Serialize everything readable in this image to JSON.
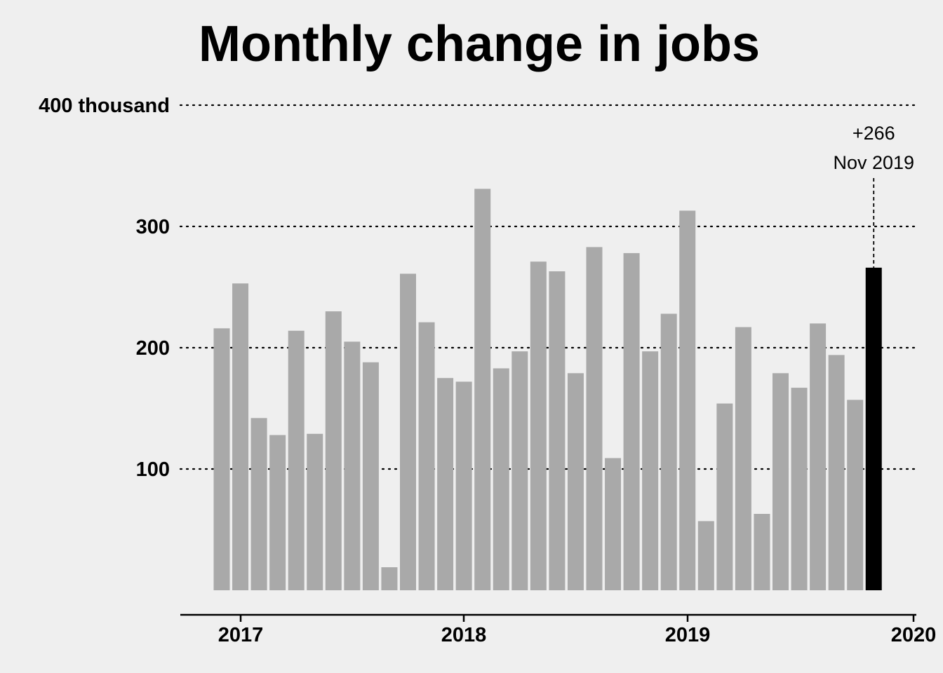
{
  "chart_data": {
    "type": "bar",
    "title": "Monthly change in jobs",
    "xlabel": "",
    "ylabel": "",
    "ylim": [
      0,
      400
    ],
    "yticks": [
      {
        "value": 100,
        "label": "100"
      },
      {
        "value": 200,
        "label": "200"
      },
      {
        "value": 300,
        "label": "300"
      },
      {
        "value": 400,
        "label": "400 thousand"
      }
    ],
    "xticks": [
      "2017",
      "2018",
      "2019",
      "2020"
    ],
    "grid": "horizontal dotted",
    "colors": {
      "bar": "#a9a9a9",
      "highlight": "#000000",
      "background": "#efefef"
    },
    "months": [
      "Dec 2016",
      "Jan 2017",
      "Feb 2017",
      "Mar 2017",
      "Apr 2017",
      "May 2017",
      "Jun 2017",
      "Jul 2017",
      "Aug 2017",
      "Sep 2017",
      "Oct 2017",
      "Nov 2017",
      "Dec 2017",
      "Jan 2018",
      "Feb 2018",
      "Mar 2018",
      "Apr 2018",
      "May 2018",
      "Jun 2018",
      "Jul 2018",
      "Aug 2018",
      "Sep 2018",
      "Oct 2018",
      "Nov 2018",
      "Dec 2018",
      "Jan 2019",
      "Feb 2019",
      "Mar 2019",
      "Apr 2019",
      "May 2019",
      "Jun 2019",
      "Jul 2019",
      "Aug 2019",
      "Sep 2019",
      "Oct 2019",
      "Nov 2019"
    ],
    "values": [
      216,
      253,
      142,
      128,
      214,
      129,
      230,
      205,
      188,
      19,
      261,
      221,
      175,
      172,
      331,
      183,
      197,
      271,
      263,
      179,
      283,
      109,
      278,
      197,
      228,
      313,
      57,
      154,
      217,
      63,
      179,
      167,
      220,
      194,
      157,
      266
    ],
    "highlight": {
      "index": 35,
      "value_label": "+266",
      "date_label": "Nov 2019"
    }
  }
}
